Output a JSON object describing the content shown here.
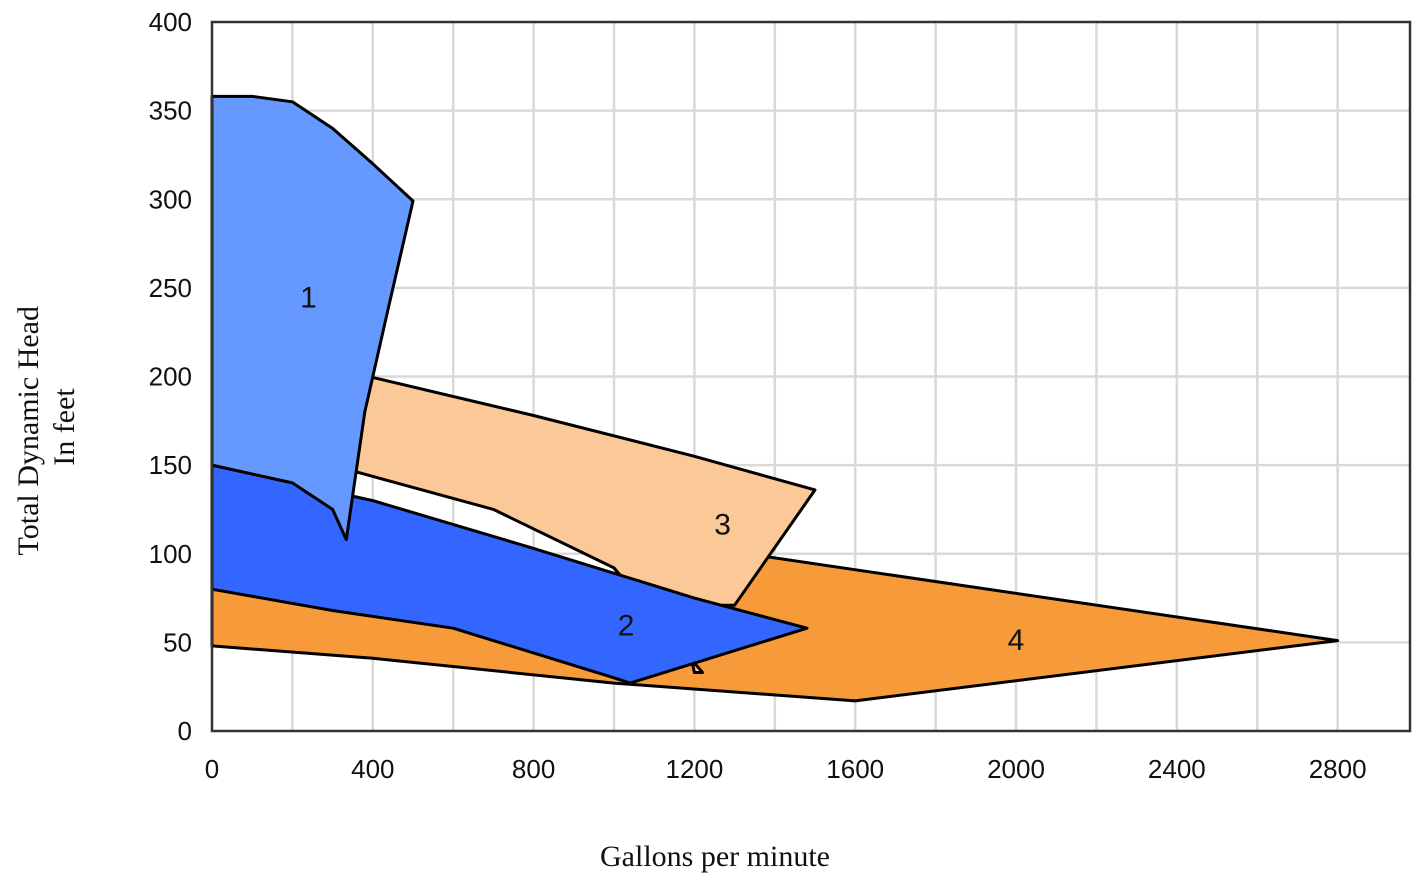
{
  "chart_data": {
    "type": "area",
    "title": "",
    "xlabel": "Gallons per minute",
    "ylabel_lines": [
      "Total Dynamic Head",
      "In feet"
    ],
    "xlim": [
      0,
      2980
    ],
    "ylim": [
      0,
      400
    ],
    "x_ticks": [
      0,
      400,
      800,
      1200,
      1600,
      2000,
      2400,
      2800
    ],
    "y_ticks": [
      0,
      50,
      100,
      150,
      200,
      250,
      300,
      350,
      400
    ],
    "x_grid_step": 200,
    "y_grid_step": 50,
    "grid": true,
    "regions": [
      {
        "label": "4",
        "color": "#F79A3A",
        "label_at": [
          2000,
          52
        ],
        "points": [
          [
            0,
            80
          ],
          [
            400,
            66
          ],
          [
            800,
            51
          ],
          [
            1050,
            34
          ],
          [
            1300,
            101
          ],
          [
            2800,
            51
          ],
          [
            1600,
            17
          ],
          [
            1000,
            27
          ],
          [
            400,
            41
          ],
          [
            0,
            48
          ]
        ]
      },
      {
        "label": "3",
        "color": "#FBC897",
        "label_at": [
          1270,
          117
        ],
        "points": [
          [
            390,
            200
          ],
          [
            800,
            178
          ],
          [
            1200,
            155
          ],
          [
            1500,
            136
          ],
          [
            1300,
            71
          ],
          [
            1200,
            71
          ],
          [
            1180,
            54
          ],
          [
            1200,
            33
          ],
          [
            1220,
            33
          ],
          [
            1000,
            92
          ],
          [
            700,
            125
          ],
          [
            330,
            148
          ]
        ]
      },
      {
        "label": "2",
        "color": "#3366FF",
        "label_at": [
          1030,
          60
        ],
        "points": [
          [
            0,
            150
          ],
          [
            200,
            140
          ],
          [
            400,
            130
          ],
          [
            800,
            103
          ],
          [
            1200,
            75
          ],
          [
            1480,
            58
          ],
          [
            1040,
            27
          ],
          [
            1000,
            30
          ],
          [
            600,
            58
          ],
          [
            300,
            68
          ],
          [
            0,
            80
          ]
        ]
      },
      {
        "label": "1",
        "color": "#6699FF",
        "label_at": [
          240,
          245
        ],
        "points": [
          [
            0,
            358
          ],
          [
            100,
            358
          ],
          [
            200,
            355
          ],
          [
            300,
            340
          ],
          [
            400,
            320
          ],
          [
            500,
            299
          ],
          [
            440,
            240
          ],
          [
            380,
            180
          ],
          [
            334,
            108
          ],
          [
            300,
            125
          ],
          [
            200,
            140
          ],
          [
            0,
            150
          ]
        ]
      }
    ]
  }
}
